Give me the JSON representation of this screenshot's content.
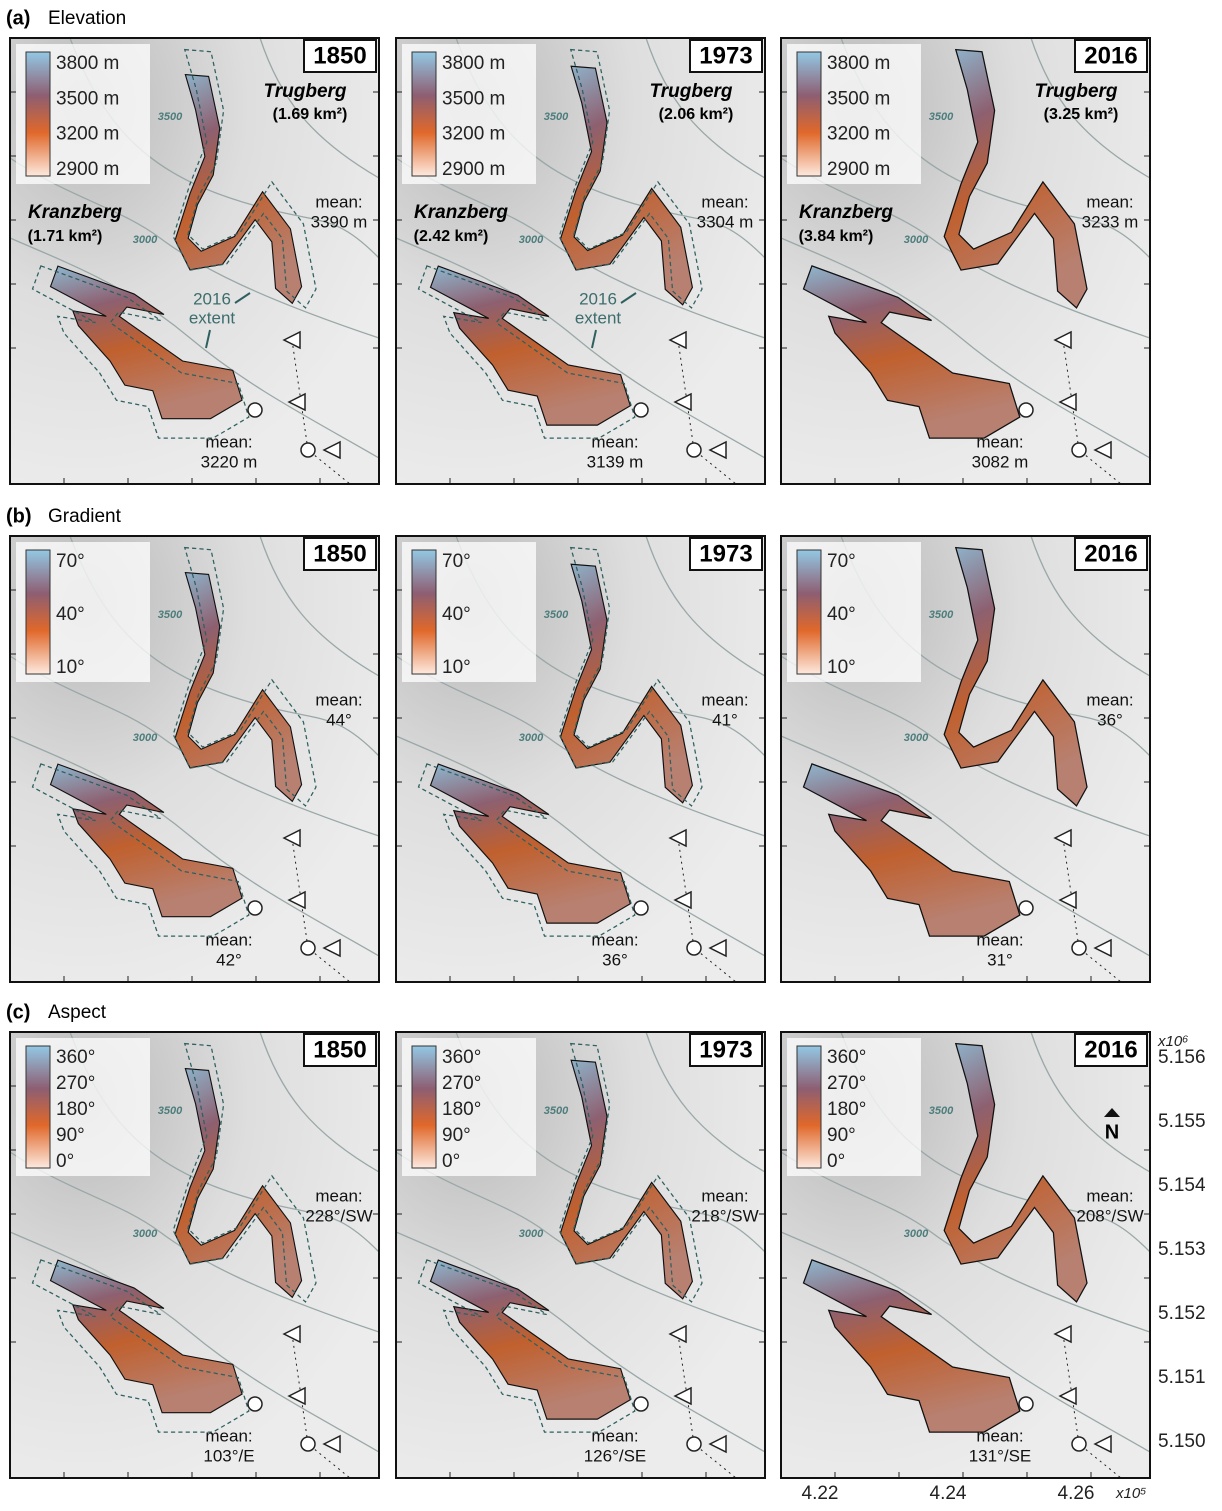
{
  "mean_label": "mean:",
  "glacier_names": {
    "trugberg": "Trugberg",
    "kranzberg": "Kranzberg"
  },
  "contour_labels": [
    "3500",
    "3000"
  ],
  "extent_label": [
    "2016",
    "extent"
  ],
  "rows": [
    {
      "label": "(a)",
      "title": "Elevation",
      "legend": [
        "3800 m",
        "3500 m",
        "3200 m",
        "2900 m"
      ],
      "maps": [
        {
          "year": "1850",
          "trugberg_area": "(1.69 km²)",
          "kranzberg_area": "(1.71 km²)",
          "trugberg_mean": "3390 m",
          "kranzberg_mean": "3220 m"
        },
        {
          "year": "1973",
          "trugberg_area": "(2.06 km²)",
          "kranzberg_area": "(2.42 km²)",
          "trugberg_mean": "3304 m",
          "kranzberg_mean": "3139 m"
        },
        {
          "year": "2016",
          "trugberg_area": "(3.25 km²)",
          "kranzberg_area": "(3.84 km²)",
          "trugberg_mean": "3233 m",
          "kranzberg_mean": "3082 m"
        }
      ]
    },
    {
      "label": "(b)",
      "title": "Gradient",
      "legend": [
        "70°",
        "40°",
        "10°"
      ],
      "maps": [
        {
          "year": "1850",
          "trugberg_mean": "44°",
          "kranzberg_mean": "42°"
        },
        {
          "year": "1973",
          "trugberg_mean": "41°",
          "kranzberg_mean": "36°"
        },
        {
          "year": "2016",
          "trugberg_mean": "36°",
          "kranzberg_mean": "31°"
        }
      ]
    },
    {
      "label": "(c)",
      "title": "Aspect",
      "legend": [
        "360°",
        "270°",
        "180°",
        "90°",
        "0°"
      ],
      "maps": [
        {
          "year": "1850",
          "trugberg_mean": "228°/SW",
          "kranzberg_mean": "103°/E"
        },
        {
          "year": "1973",
          "trugberg_mean": "218°/SW",
          "kranzberg_mean": "126°/SE"
        },
        {
          "year": "2016",
          "trugberg_mean": "208°/SW",
          "kranzberg_mean": "131°/SE"
        }
      ]
    }
  ],
  "north_label": "N",
  "y_axis": {
    "exponent": "x10⁶",
    "ticks": [
      "5.156",
      "5.155",
      "5.154",
      "5.153",
      "5.152",
      "5.151",
      "5.150"
    ]
  },
  "x_axis": {
    "exponent": "x10⁵",
    "ticks": [
      "4.22",
      "4.24",
      "4.26"
    ]
  }
}
